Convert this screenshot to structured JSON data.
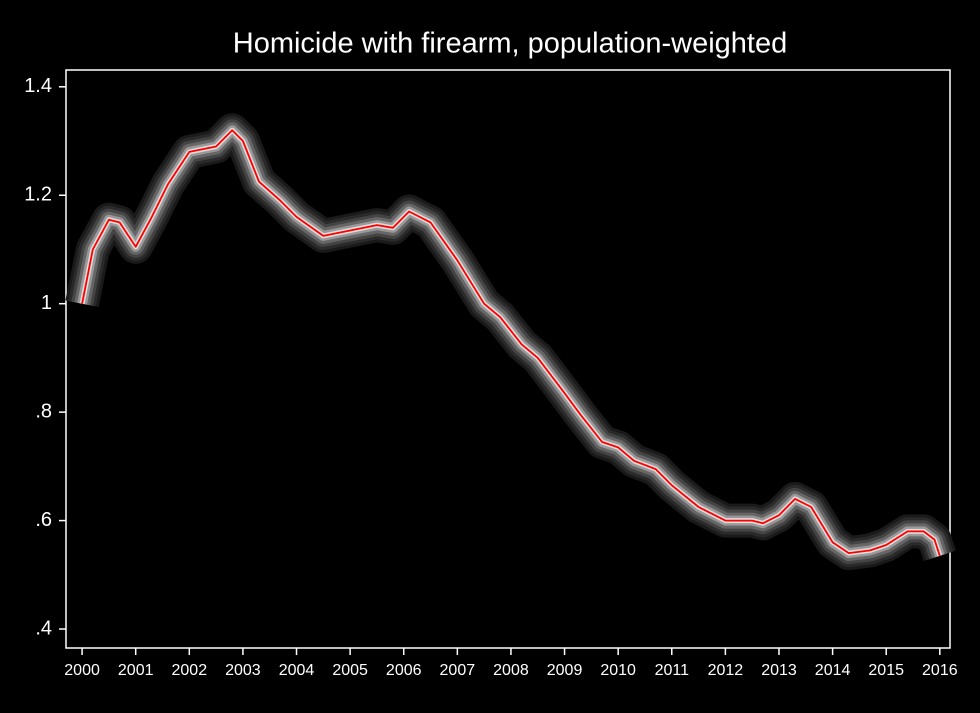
{
  "chart_data": {
    "type": "line",
    "title": "Homicide with firearm, population-weighted",
    "x": [
      2000,
      2000.2,
      2000.5,
      2000.7,
      2001.0,
      2001.3,
      2001.6,
      2002.0,
      2002.5,
      2002.8,
      2003.0,
      2003.3,
      2003.7,
      2004.0,
      2004.5,
      2005.0,
      2005.5,
      2005.8,
      2006.1,
      2006.5,
      2007.0,
      2007.5,
      2007.8,
      2008.2,
      2008.5,
      2009.0,
      2009.3,
      2009.7,
      2010.0,
      2010.3,
      2010.7,
      2011.0,
      2011.5,
      2012.0,
      2012.5,
      2012.7,
      2013.0,
      2013.3,
      2013.6,
      2014.0,
      2014.3,
      2014.7,
      2015.0,
      2015.4,
      2015.7,
      2015.9,
      2016.0
    ],
    "values": [
      1.0,
      1.1,
      1.155,
      1.15,
      1.105,
      1.16,
      1.22,
      1.28,
      1.29,
      1.32,
      1.3,
      1.225,
      1.19,
      1.16,
      1.125,
      1.135,
      1.145,
      1.14,
      1.17,
      1.15,
      1.08,
      1.0,
      0.975,
      0.925,
      0.9,
      0.835,
      0.795,
      0.745,
      0.735,
      0.71,
      0.695,
      0.665,
      0.625,
      0.6,
      0.6,
      0.595,
      0.61,
      0.64,
      0.625,
      0.56,
      0.54,
      0.545,
      0.555,
      0.58,
      0.58,
      0.565,
      0.535
    ],
    "color": "#ff0000",
    "xlim": [
      1999.7,
      2016.19
    ],
    "ylim": [
      0.365,
      1.431
    ],
    "xticks": [
      2000,
      2001,
      2002,
      2003,
      2004,
      2005,
      2006,
      2007,
      2008,
      2009,
      2010,
      2011,
      2012,
      2013,
      2014,
      2015,
      2016
    ],
    "yticks": [
      {
        "value": 0.4,
        "label": ".4"
      },
      {
        "value": 0.6,
        "label": ".6"
      },
      {
        "value": 0.8,
        "label": ".8"
      },
      1,
      1.2,
      1.4
    ]
  }
}
